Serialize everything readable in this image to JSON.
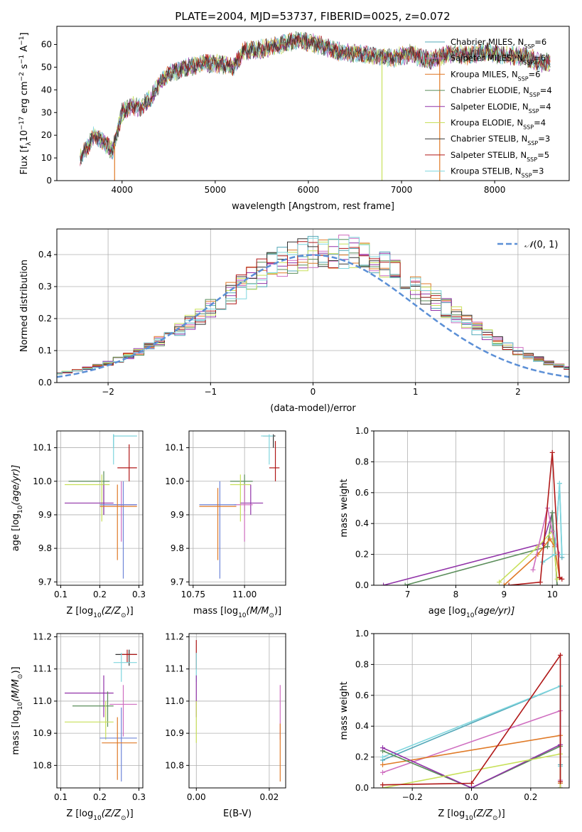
{
  "figure": {
    "title": "PLATE=2004, MJD=53737, FIBERID=0025, z=0.072"
  },
  "colors": {
    "chabrier_miles": "#53a8b8",
    "salpeter_miles": "#cf6ec0",
    "kroupa_miles": "#e07a27",
    "chabrier_elodie": "#5a8d5a",
    "salpeter_elodie": "#9133a8",
    "kroupa_elodie": "#c8e05a",
    "chabrier_stelib": "#333333",
    "salpeter_stelib": "#b01818",
    "kroupa_stelib": "#7fd6de",
    "normal_curve": "#5b8fd6",
    "extra_blue": "#6f86d8"
  },
  "chart_data": [
    {
      "id": "spectrum",
      "type": "line",
      "xlabel": "wavelength [Angstrom, rest frame]",
      "ylabel_parts": [
        "Flux [f",
        "λ",
        "10",
        "−17",
        " erg cm",
        "−2",
        " s",
        "−1",
        " A",
        "−1",
        "]"
      ],
      "xlim": [
        3300,
        8800
      ],
      "ylim": [
        0,
        68
      ],
      "xticks": [
        4000,
        5000,
        6000,
        7000,
        8000
      ],
      "yticks": [
        0,
        10,
        20,
        30,
        40,
        50,
        60
      ],
      "grid": false,
      "legend_position": "top-right",
      "legend": [
        {
          "label": "Chabrier MILES, N",
          "sub": "SSP",
          "suffix": "=6",
          "color_key": "chabrier_miles"
        },
        {
          "label": "Salpeter MILES, N",
          "sub": "SSP",
          "suffix": "=6",
          "color_key": "salpeter_miles"
        },
        {
          "label": "Kroupa MILES, N",
          "sub": "SSP",
          "suffix": "=6",
          "color_key": "kroupa_miles"
        },
        {
          "label": "Chabrier ELODIE, N",
          "sub": "SSP",
          "suffix": "=4",
          "color_key": "chabrier_elodie"
        },
        {
          "label": "Salpeter ELODIE, N",
          "sub": "SSP",
          "suffix": "=4",
          "color_key": "salpeter_elodie"
        },
        {
          "label": "Kroupa ELODIE, N",
          "sub": "SSP",
          "suffix": "=4",
          "color_key": "kroupa_elodie"
        },
        {
          "label": "Chabrier STELIB, N",
          "sub": "SSP",
          "suffix": "=3",
          "color_key": "chabrier_stelib"
        },
        {
          "label": "Salpeter STELIB, N",
          "sub": "SSP",
          "suffix": "=5",
          "color_key": "salpeter_stelib"
        },
        {
          "label": "Kroupa STELIB, N",
          "sub": "SSP",
          "suffix": "=3",
          "color_key": "kroupa_stelib"
        }
      ],
      "envelope": {
        "x": [
          3550,
          3600,
          3700,
          3800,
          3900,
          3950,
          4000,
          4100,
          4200,
          4300,
          4400,
          4500,
          4700,
          4900,
          5100,
          5200,
          5300,
          5500,
          5700,
          5900,
          6100,
          6300,
          6500,
          6700,
          6900,
          7000,
          7100,
          7300,
          7500,
          7700,
          7900,
          8100,
          8300,
          8500,
          8600
        ],
        "y": [
          10,
          13,
          20,
          17,
          13,
          22,
          30,
          33,
          32,
          36,
          43,
          47,
          50,
          52,
          51,
          50,
          57,
          58,
          60,
          62,
          60,
          57,
          56,
          55,
          54,
          55,
          56,
          53,
          56,
          55,
          57,
          55,
          55,
          52,
          52
        ]
      },
      "dips": [
        {
          "x": 3920,
          "y": 0,
          "color_key": "kroupa_miles"
        },
        {
          "x": 6790,
          "y": 0,
          "color_key": "kroupa_elodie"
        },
        {
          "x": 7410,
          "y": 0,
          "color_key": "kroupa_miles"
        }
      ]
    },
    {
      "id": "residuals",
      "type": "histogram",
      "xlabel": "(data-model)/error",
      "ylabel": "Normed distribution",
      "xlim": [
        -2.5,
        2.5
      ],
      "ylim": [
        0,
        0.48
      ],
      "xticks": [
        -2,
        -1,
        0,
        1,
        2
      ],
      "xtick_labels": [
        "−2",
        "−1",
        "0",
        "1",
        "2"
      ],
      "yticks": [
        0.0,
        0.1,
        0.2,
        0.3,
        0.4
      ],
      "ytick_labels": [
        "0.0",
        "0.1",
        "0.2",
        "0.3",
        "0.4"
      ],
      "grid": true,
      "legend_position": "top-right",
      "legend_label_parts": [
        "𝒩",
        "(0, 1)"
      ],
      "bin_width": 0.1,
      "series": [
        {
          "color_key": "chabrier_miles",
          "seed": 1
        },
        {
          "color_key": "salpeter_miles",
          "seed": 2
        },
        {
          "color_key": "kroupa_miles",
          "seed": 3
        },
        {
          "color_key": "chabrier_elodie",
          "seed": 4
        },
        {
          "color_key": "salpeter_elodie",
          "seed": 5
        },
        {
          "color_key": "kroupa_elodie",
          "seed": 6
        },
        {
          "color_key": "chabrier_stelib",
          "seed": 7
        },
        {
          "color_key": "salpeter_stelib",
          "seed": 8
        },
        {
          "color_key": "kroupa_stelib",
          "seed": 9
        }
      ]
    },
    {
      "id": "z-age",
      "type": "scatter",
      "xlabel_parts": [
        "Z [log",
        "10",
        "(Z/Z",
        "⊙",
        ")]"
      ],
      "ylabel_parts": [
        "age  [log",
        "10",
        "(age/yr)]"
      ],
      "xlim": [
        0.09,
        0.31
      ],
      "ylim": [
        9.69,
        10.15
      ],
      "xticks": [
        0.1,
        0.2,
        0.3
      ],
      "xtick_labels": [
        "0.1",
        "0.2",
        "0.3"
      ],
      "yticks": [
        9.7,
        9.8,
        9.9,
        10.0,
        10.1
      ],
      "ytick_labels": [
        "9.7",
        "9.8",
        "9.9",
        "10.0",
        "10.1"
      ],
      "grid": true,
      "points": [
        {
          "x": 0.235,
          "y": 10.135,
          "x0": 0.235,
          "x1": 0.295,
          "y0": 10.1,
          "y1": 10.14,
          "color_key": "chabrier_miles"
        },
        {
          "x": 0.235,
          "y": 10.135,
          "x0": 0.235,
          "x1": 0.295,
          "y0": 10.05,
          "y1": 10.14,
          "color_key": "kroupa_stelib"
        },
        {
          "x": 0.275,
          "y": 10.04,
          "x0": 0.245,
          "x1": 0.295,
          "y0": 10.0,
          "y1": 10.11,
          "color_key": "salpeter_stelib"
        },
        {
          "x": 0.21,
          "y": 10.0,
          "x0": 0.12,
          "x1": 0.225,
          "y0": 9.9,
          "y1": 10.03,
          "color_key": "chabrier_elodie"
        },
        {
          "x": 0.205,
          "y": 9.99,
          "x0": 0.11,
          "x1": 0.225,
          "y0": 9.88,
          "y1": 10.02,
          "color_key": "kroupa_elodie"
        },
        {
          "x": 0.21,
          "y": 9.935,
          "x0": 0.11,
          "x1": 0.235,
          "y0": 9.9,
          "y1": 9.99,
          "color_key": "salpeter_elodie"
        },
        {
          "x": 0.255,
          "y": 9.93,
          "x0": 0.21,
          "x1": 0.295,
          "y0": 9.82,
          "y1": 10.0,
          "color_key": "salpeter_miles"
        },
        {
          "x": 0.26,
          "y": 9.93,
          "x0": 0.2,
          "x1": 0.295,
          "y0": 9.71,
          "y1": 10.0,
          "color_key": "extra_blue"
        },
        {
          "x": 0.245,
          "y": 9.925,
          "x0": 0.2,
          "x1": 0.295,
          "y0": 9.765,
          "y1": 9.99,
          "color_key": "kroupa_miles"
        }
      ]
    },
    {
      "id": "mass-age",
      "type": "scatter",
      "xlabel_parts": [
        "mass [log",
        "10",
        "(M/M",
        "⊙",
        ")]"
      ],
      "xlim": [
        10.73,
        11.2
      ],
      "ylim": [
        9.69,
        10.15
      ],
      "xticks": [
        10.75,
        11.0
      ],
      "xtick_labels": [
        "10.75",
        "11.00"
      ],
      "yticks": [
        9.7,
        9.8,
        9.9,
        10.0,
        10.1
      ],
      "ytick_labels": [
        "9.7",
        "9.8",
        "9.9",
        "10.0",
        "10.1"
      ],
      "grid": true,
      "points": [
        {
          "x": 11.14,
          "y": 10.135,
          "x0": 11.09,
          "x1": 11.15,
          "y0": 10.1,
          "y1": 10.14,
          "color_key": "chabrier_stelib"
        },
        {
          "x": 11.12,
          "y": 10.135,
          "x0": 11.08,
          "x1": 11.14,
          "y0": 10.05,
          "y1": 10.14,
          "color_key": "kroupa_stelib"
        },
        {
          "x": 11.15,
          "y": 10.04,
          "x0": 11.12,
          "x1": 11.17,
          "y0": 10.0,
          "y1": 10.12,
          "color_key": "salpeter_stelib"
        },
        {
          "x": 11.0,
          "y": 10.0,
          "x0": 10.93,
          "x1": 11.04,
          "y0": 9.91,
          "y1": 10.02,
          "color_key": "chabrier_elodie"
        },
        {
          "x": 10.98,
          "y": 9.99,
          "x0": 10.93,
          "x1": 11.03,
          "y0": 9.88,
          "y1": 10.02,
          "color_key": "kroupa_elodie"
        },
        {
          "x": 11.03,
          "y": 9.935,
          "x0": 10.98,
          "x1": 11.09,
          "y0": 9.9,
          "y1": 9.99,
          "color_key": "salpeter_elodie"
        },
        {
          "x": 11.0,
          "y": 9.93,
          "x0": 10.95,
          "x1": 11.04,
          "y0": 9.82,
          "y1": 9.99,
          "color_key": "salpeter_miles"
        },
        {
          "x": 10.88,
          "y": 9.93,
          "x0": 10.78,
          "x1": 10.96,
          "y0": 9.71,
          "y1": 10.0,
          "color_key": "extra_blue"
        },
        {
          "x": 10.87,
          "y": 9.925,
          "x0": 10.78,
          "x1": 10.96,
          "y0": 9.765,
          "y1": 9.98,
          "color_key": "kroupa_miles"
        }
      ]
    },
    {
      "id": "age-weight",
      "type": "line",
      "xlabel_parts": [
        "age  [log",
        "10",
        "(age/yr)]"
      ],
      "ylabel": "mass weight",
      "xlim": [
        6.3,
        10.35
      ],
      "ylim": [
        0,
        1.0
      ],
      "xticks": [
        7,
        8,
        9,
        10
      ],
      "xtick_labels": [
        "7",
        "8",
        "9",
        "10"
      ],
      "yticks": [
        0.0,
        0.2,
        0.4,
        0.6,
        0.8,
        1.0
      ],
      "ytick_labels": [
        "0.0",
        "0.2",
        "0.4",
        "0.6",
        "0.8",
        "1.0"
      ],
      "grid": true,
      "series": [
        {
          "color_key": "salpeter_elodie",
          "x": [
            6.5,
            9.8,
            10.0,
            10.1
          ],
          "y": [
            0.0,
            0.27,
            0.47,
            0.0
          ]
        },
        {
          "color_key": "chabrier_elodie",
          "x": [
            6.95,
            9.9,
            10.0,
            10.1
          ],
          "y": [
            0.0,
            0.25,
            0.47,
            0.0
          ]
        },
        {
          "color_key": "kroupa_elodie",
          "x": [
            8.9,
            9.7,
            10.0,
            10.1
          ],
          "y": [
            0.02,
            0.25,
            0.35,
            0.04
          ]
        },
        {
          "color_key": "kroupa_miles",
          "x": [
            9.0,
            9.7,
            9.95,
            10.05,
            10.15
          ],
          "y": [
            0.0,
            0.2,
            0.3,
            0.25,
            0.05
          ]
        },
        {
          "color_key": "salpeter_miles",
          "x": [
            9.6,
            9.9,
            10.0,
            10.15
          ],
          "y": [
            0.1,
            0.5,
            0.35,
            0.2
          ]
        },
        {
          "color_key": "chabrier_miles",
          "x": [
            9.8,
            10.05,
            10.15,
            10.2
          ],
          "y": [
            0.15,
            0.2,
            0.66,
            0.18
          ]
        },
        {
          "color_key": "kroupa_stelib",
          "x": [
            9.8,
            10.05,
            10.15,
            10.2
          ],
          "y": [
            0.15,
            0.2,
            0.66,
            0.2
          ]
        },
        {
          "color_key": "salpeter_stelib",
          "x": [
            9.1,
            9.75,
            10.0,
            10.15,
            10.2
          ],
          "y": [
            0.0,
            0.02,
            0.86,
            0.05,
            0.04
          ]
        }
      ]
    },
    {
      "id": "z-mass",
      "type": "scatter",
      "xlabel_parts": [
        "Z [log",
        "10",
        "(Z/Z",
        "⊙",
        ")]"
      ],
      "ylabel_parts": [
        "mass [log",
        "10",
        "(M/M",
        "⊙",
        ")]"
      ],
      "xlim": [
        0.09,
        0.31
      ],
      "ylim": [
        10.73,
        11.21
      ],
      "xticks": [
        0.1,
        0.2,
        0.3
      ],
      "xtick_labels": [
        "0.1",
        "0.2",
        "0.3"
      ],
      "yticks": [
        10.8,
        10.9,
        11.0,
        11.1,
        11.2
      ],
      "ytick_labels": [
        "10.8",
        "10.9",
        "11.0",
        "11.1",
        "11.2"
      ],
      "grid": true,
      "points": [
        {
          "x": 0.275,
          "y": 11.145,
          "x0": 0.24,
          "x1": 0.295,
          "y0": 11.11,
          "y1": 11.16,
          "color_key": "chabrier_stelib"
        },
        {
          "x": 0.27,
          "y": 11.145,
          "x0": 0.255,
          "x1": 0.295,
          "y0": 11.12,
          "y1": 11.16,
          "color_key": "salpeter_stelib"
        },
        {
          "x": 0.255,
          "y": 11.12,
          "x0": 0.235,
          "x1": 0.295,
          "y0": 11.06,
          "y1": 11.15,
          "color_key": "kroupa_stelib"
        },
        {
          "x": 0.21,
          "y": 11.025,
          "x0": 0.11,
          "x1": 0.235,
          "y0": 10.95,
          "y1": 11.08,
          "color_key": "salpeter_elodie"
        },
        {
          "x": 0.22,
          "y": 10.985,
          "x0": 0.13,
          "x1": 0.235,
          "y0": 10.92,
          "y1": 11.03,
          "color_key": "chabrier_elodie"
        },
        {
          "x": 0.215,
          "y": 10.935,
          "x0": 0.11,
          "x1": 0.235,
          "y0": 10.88,
          "y1": 11.0,
          "color_key": "kroupa_elodie"
        },
        {
          "x": 0.26,
          "y": 10.99,
          "x0": 0.225,
          "x1": 0.295,
          "y0": 10.89,
          "y1": 11.05,
          "color_key": "salpeter_miles"
        },
        {
          "x": 0.255,
          "y": 10.885,
          "x0": 0.2,
          "x1": 0.295,
          "y0": 10.75,
          "y1": 10.98,
          "color_key": "extra_blue"
        },
        {
          "x": 0.245,
          "y": 10.87,
          "x0": 0.205,
          "x1": 0.295,
          "y0": 10.755,
          "y1": 10.95,
          "color_key": "kroupa_miles"
        }
      ]
    },
    {
      "id": "ebv-mass",
      "type": "scatter",
      "xlabel": "E(B-V)",
      "xlim": [
        -0.002,
        0.0245
      ],
      "ylim": [
        10.73,
        11.21
      ],
      "xticks": [
        0.0,
        0.02
      ],
      "xtick_labels": [
        "0.00",
        "0.02"
      ],
      "yticks": [
        10.8,
        10.9,
        11.0,
        11.1,
        11.2
      ],
      "ytick_labels": [
        "10.8",
        "10.9",
        "11.0",
        "11.1",
        "11.2"
      ],
      "grid": true,
      "points": [
        {
          "x": 0.0,
          "y": 11.15,
          "y0": 11.1,
          "y1": 11.19,
          "color_key": "salpeter_stelib"
        },
        {
          "x": 0.0,
          "y": 11.12,
          "y0": 11.06,
          "y1": 11.15,
          "color_key": "kroupa_stelib"
        },
        {
          "x": 0.0,
          "y": 11.02,
          "y0": 10.95,
          "y1": 11.08,
          "color_key": "salpeter_elodie"
        },
        {
          "x": 0.0,
          "y": 10.94,
          "y0": 10.87,
          "y1": 11.0,
          "color_key": "kroupa_elodie"
        },
        {
          "x": 0.023,
          "y": 10.99,
          "y0": 10.88,
          "y1": 11.05,
          "color_key": "salpeter_miles"
        },
        {
          "x": 0.023,
          "y": 10.87,
          "y0": 10.75,
          "y1": 10.93,
          "color_key": "kroupa_miles"
        }
      ]
    },
    {
      "id": "z-weight",
      "type": "line",
      "xlabel_parts": [
        "Z [log",
        "10",
        "(Z/Z",
        "⊙",
        ")]"
      ],
      "ylabel": "mass weight",
      "xlim": [
        -0.33,
        0.33
      ],
      "ylim": [
        0,
        1.0
      ],
      "xticks": [
        -0.2,
        0.0,
        0.2
      ],
      "xtick_labels": [
        "−0.2",
        "0.0",
        "0.2"
      ],
      "yticks": [
        0.0,
        0.2,
        0.4,
        0.6,
        0.8,
        1.0
      ],
      "ytick_labels": [
        "0.0",
        "0.2",
        "0.4",
        "0.6",
        "0.8",
        "1.0"
      ],
      "grid": true,
      "series": [
        {
          "color_key": "chabrier_miles",
          "x": [
            -0.3,
            0.3,
            0.3
          ],
          "y": [
            0.18,
            0.66,
            0.15
          ]
        },
        {
          "color_key": "kroupa_stelib",
          "x": [
            -0.3,
            0.3,
            0.3
          ],
          "y": [
            0.2,
            0.66,
            0.14
          ]
        },
        {
          "color_key": "salpeter_miles",
          "x": [
            -0.3,
            0.3,
            0.3
          ],
          "y": [
            0.1,
            0.5,
            0.05
          ]
        },
        {
          "color_key": "kroupa_miles",
          "x": [
            -0.3,
            0.3,
            0.3
          ],
          "y": [
            0.15,
            0.34,
            0.03
          ]
        },
        {
          "color_key": "chabrier_elodie",
          "x": [
            -0.3,
            0.0,
            0.3,
            0.3
          ],
          "y": [
            0.24,
            0.0,
            0.27,
            0.0
          ]
        },
        {
          "color_key": "salpeter_elodie",
          "x": [
            -0.3,
            0.0,
            0.3,
            0.3
          ],
          "y": [
            0.26,
            0.0,
            0.28,
            0.0
          ]
        },
        {
          "color_key": "kroupa_elodie",
          "x": [
            -0.3,
            0.3,
            0.3
          ],
          "y": [
            0.0,
            0.22,
            0.0
          ]
        },
        {
          "color_key": "salpeter_stelib",
          "x": [
            -0.3,
            0.0,
            0.3,
            0.3
          ],
          "y": [
            0.02,
            0.03,
            0.86,
            0.04
          ]
        }
      ]
    }
  ]
}
